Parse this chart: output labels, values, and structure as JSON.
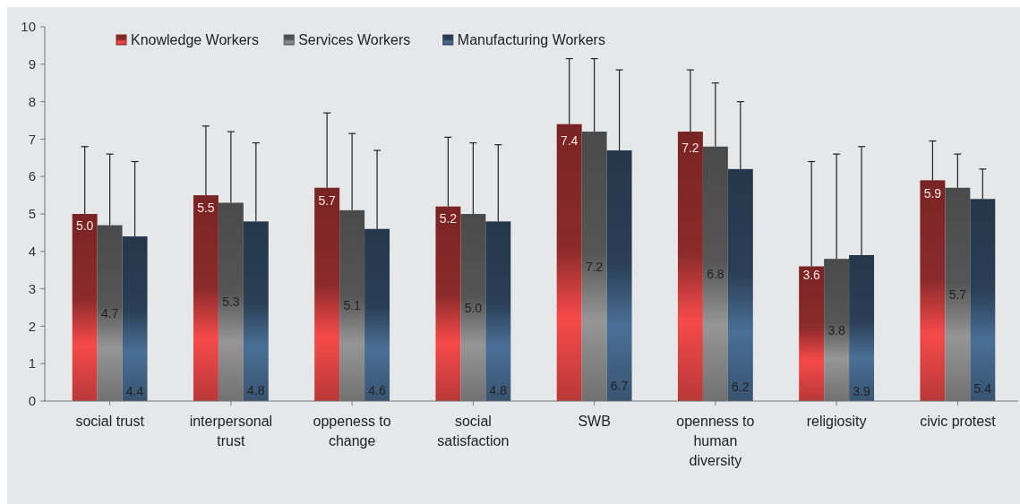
{
  "chart_data": {
    "type": "bar",
    "categories": [
      "social trust",
      "interpersonal trust",
      "oppeness to change",
      "social satisfaction",
      "SWB",
      "openness to human diversity",
      "religiosity",
      "civic protest"
    ],
    "series": [
      {
        "name": "Knowledge Workers",
        "color": "#8b2a2a",
        "values": [
          5.0,
          5.5,
          5.7,
          5.2,
          7.4,
          7.2,
          3.6,
          5.9
        ],
        "value_labels": [
          "5.0",
          "5.5",
          "5.7",
          "5.2",
          "7.4",
          "7.2",
          "3.6",
          "5.9"
        ],
        "errors": [
          [
            5.0,
            6.8
          ],
          [
            5.5,
            7.35
          ],
          [
            5.7,
            7.7
          ],
          [
            5.2,
            7.05
          ],
          [
            7.4,
            9.15
          ],
          [
            7.2,
            8.85
          ],
          [
            3.6,
            6.4
          ],
          [
            5.9,
            6.95
          ]
        ]
      },
      {
        "name": "Services Workers",
        "color": "#555555",
        "values": [
          4.7,
          5.3,
          5.1,
          5.0,
          7.2,
          6.8,
          3.8,
          5.7
        ],
        "value_labels": [
          "4.7",
          "5.3",
          "5.1",
          "5.0",
          "7.2",
          "6.8",
          "3.8",
          "5.7"
        ],
        "errors": [
          [
            4.7,
            6.6
          ],
          [
            5.3,
            7.2
          ],
          [
            5.1,
            7.15
          ],
          [
            5.0,
            6.9
          ],
          [
            7.2,
            9.15
          ],
          [
            6.8,
            8.5
          ],
          [
            3.8,
            6.6
          ],
          [
            5.7,
            6.6
          ]
        ]
      },
      {
        "name": "Manufacturing Workers",
        "color": "#2a3f55",
        "values": [
          4.4,
          4.8,
          4.6,
          4.8,
          6.7,
          6.2,
          3.9,
          5.4
        ],
        "value_labels": [
          "4.4",
          "4.8",
          "4.6",
          "4.8",
          "6.7",
          "6.2",
          "3.9",
          "5.4"
        ],
        "errors": [
          [
            4.4,
            6.4
          ],
          [
            4.8,
            6.9
          ],
          [
            4.6,
            6.7
          ],
          [
            4.8,
            6.85
          ],
          [
            6.7,
            8.85
          ],
          [
            6.2,
            8.0
          ],
          [
            3.9,
            6.8
          ],
          [
            5.4,
            6.2
          ]
        ]
      }
    ],
    "ylim": [
      0,
      10
    ],
    "yticks": [
      0,
      1,
      2,
      3,
      4,
      5,
      6,
      7,
      8,
      9,
      10
    ],
    "legend": "top left",
    "grid": false
  }
}
